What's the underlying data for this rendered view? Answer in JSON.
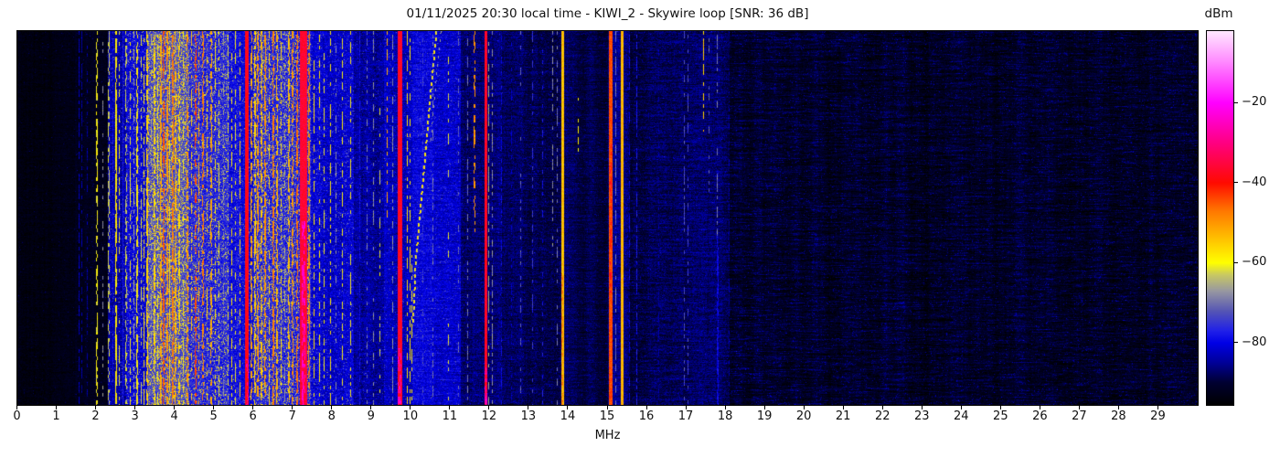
{
  "title": "01/11/2025 20:30 local time - KIWI_2 - Skywire loop [SNR: 36 dB]",
  "x_axis": {
    "label": "MHz",
    "ticks": [
      "0",
      "1",
      "2",
      "3",
      "4",
      "5",
      "6",
      "7",
      "8",
      "9",
      "10",
      "11",
      "12",
      "13",
      "14",
      "15",
      "16",
      "17",
      "18",
      "19",
      "20",
      "21",
      "22",
      "23",
      "24",
      "25",
      "26",
      "27",
      "28",
      "29"
    ]
  },
  "colorbar": {
    "label": "dBm",
    "tick_labels": [
      "−20",
      "−40",
      "−60",
      "−80"
    ],
    "tick_values": [
      -20,
      -40,
      -60,
      -80
    ]
  },
  "chart_data": {
    "type": "heatmap",
    "title": "01/11/2025 20:30 local time - KIWI_2 - Skywire loop [SNR: 36 dB]",
    "xlabel": "MHz",
    "x_range": [
      0,
      30
    ],
    "value_label": "dBm",
    "value_range": [
      -95.5,
      -2
    ],
    "grid": false,
    "legend_position": "right-colorbar",
    "colormap_stops": [
      [
        0.0,
        "#000000"
      ],
      [
        0.059,
        "#000030"
      ],
      [
        0.112,
        "#000096"
      ],
      [
        0.166,
        "#0000e6"
      ],
      [
        0.198,
        "#2020e8"
      ],
      [
        0.251,
        "#5555b4"
      ],
      [
        0.305,
        "#9898a0"
      ],
      [
        0.348,
        "#c8c862"
      ],
      [
        0.38,
        "#ffff00"
      ],
      [
        0.433,
        "#ffcc00"
      ],
      [
        0.519,
        "#ff7700"
      ],
      [
        0.594,
        "#ff0a00"
      ],
      [
        0.7,
        "#ff0080"
      ],
      [
        0.8075,
        "#ff00ff"
      ],
      [
        0.92,
        "#ff8cff"
      ],
      [
        1.0,
        "#ffe8ff"
      ]
    ],
    "noise_profile": [
      [
        0.0,
        1.45,
        -93.5,
        3,
        0.02,
        6,
        2
      ],
      [
        1.45,
        2.28,
        -92.5,
        3,
        0.03,
        7,
        2
      ],
      [
        2.28,
        2.75,
        -84,
        6,
        0.1,
        14,
        3
      ],
      [
        2.75,
        3.28,
        -81,
        7,
        0.14,
        16,
        3
      ],
      [
        3.28,
        4.35,
        -74,
        8,
        0.3,
        20,
        3
      ],
      [
        4.35,
        5.35,
        -77,
        8,
        0.22,
        18,
        3
      ],
      [
        5.35,
        5.98,
        -80,
        7,
        0.12,
        14,
        3
      ],
      [
        5.98,
        7.45,
        -76,
        8,
        0.25,
        18,
        3
      ],
      [
        7.45,
        8.55,
        -81,
        7,
        0.1,
        12,
        3
      ],
      [
        8.55,
        9.3,
        -85,
        6,
        0.06,
        10,
        4
      ],
      [
        9.3,
        10.02,
        -83,
        6,
        0.08,
        10,
        4
      ],
      [
        10.02,
        11.25,
        -81.5,
        6,
        0.08,
        8,
        5
      ],
      [
        11.25,
        12.3,
        -86.5,
        5,
        0.05,
        8,
        4
      ],
      [
        12.3,
        14.0,
        -88.5,
        5,
        0.04,
        7,
        4
      ],
      [
        14.0,
        15.0,
        -89.5,
        4,
        0.04,
        6,
        4
      ],
      [
        15.0,
        15.55,
        -86.5,
        5,
        0.05,
        8,
        4
      ],
      [
        15.55,
        18.1,
        -88.5,
        5,
        0.04,
        7,
        5
      ],
      [
        18.1,
        30.1,
        -91,
        4,
        0.06,
        8,
        7
      ]
    ],
    "bands": [
      [
        1.58,
        1,
        -83,
        0,
        1,
        0.7
      ],
      [
        1.63,
        1,
        -84,
        0,
        1,
        0.5
      ],
      [
        1.78,
        1,
        -85,
        0,
        1,
        0.5
      ],
      [
        2.02,
        2,
        -60,
        0,
        1,
        0.55
      ],
      [
        2.17,
        1,
        -68,
        0,
        1,
        0.3
      ],
      [
        2.32,
        2,
        -63,
        0,
        1,
        0.5
      ],
      [
        2.42,
        1,
        -79,
        0,
        1,
        0.8
      ],
      [
        2.5,
        2,
        -58,
        0,
        1,
        0.75
      ],
      [
        2.6,
        1,
        -62,
        0,
        1,
        0.5
      ],
      [
        2.68,
        1,
        -78,
        0,
        1,
        1
      ],
      [
        2.76,
        2,
        -63,
        0,
        1,
        0.45
      ],
      [
        2.88,
        1,
        -60,
        0,
        1,
        0.55
      ],
      [
        2.97,
        1,
        -65,
        0,
        1,
        0.4
      ],
      [
        3.05,
        2,
        -59,
        0,
        1,
        0.6
      ],
      [
        3.15,
        1,
        -62,
        0,
        1,
        0.5
      ],
      [
        3.22,
        1,
        -58,
        0,
        1,
        0.55
      ],
      [
        3.3,
        2,
        -56,
        0,
        1,
        0.7
      ],
      [
        3.4,
        1,
        -66,
        0,
        1,
        0.5
      ],
      [
        3.48,
        2,
        -57,
        0,
        1,
        0.6
      ],
      [
        3.56,
        1,
        -60,
        0,
        1,
        0.5
      ],
      [
        3.65,
        2,
        -52,
        0,
        1,
        0.75
      ],
      [
        3.72,
        2,
        -45,
        0,
        1,
        0.6
      ],
      [
        3.8,
        2,
        -50,
        0,
        1,
        0.7
      ],
      [
        3.88,
        1,
        -57,
        0,
        1,
        0.6
      ],
      [
        3.95,
        2,
        -48,
        0,
        1,
        0.65
      ],
      [
        4.03,
        2,
        -53,
        0,
        1,
        0.6
      ],
      [
        4.12,
        2,
        -57,
        0,
        1,
        0.5
      ],
      [
        4.22,
        1,
        -60,
        0,
        1,
        0.5
      ],
      [
        4.32,
        2,
        -50,
        0,
        1,
        0.5
      ],
      [
        4.42,
        1,
        -55,
        0,
        1,
        0.5
      ],
      [
        4.52,
        2,
        -44,
        0,
        1,
        0.45
      ],
      [
        4.62,
        1,
        -52,
        0,
        1,
        0.5
      ],
      [
        4.72,
        2,
        -48,
        0,
        1,
        0.55
      ],
      [
        4.82,
        1,
        -55,
        0,
        1,
        0.5
      ],
      [
        4.92,
        2,
        -52,
        0,
        1,
        0.5
      ],
      [
        5.02,
        1,
        -58,
        0,
        1,
        0.5
      ],
      [
        5.12,
        1,
        -60,
        0,
        1,
        0.45
      ],
      [
        5.25,
        1,
        -68,
        0,
        1,
        0.4
      ],
      [
        5.35,
        1,
        -62,
        0,
        1,
        0.4
      ],
      [
        5.45,
        1,
        -58,
        0,
        1,
        0.5
      ],
      [
        5.55,
        1,
        -60,
        0,
        1,
        0.45
      ],
      [
        5.65,
        1,
        -57,
        0,
        1,
        0.5
      ],
      [
        5.75,
        1,
        -80,
        0,
        1,
        1
      ],
      [
        5.84,
        4,
        -38,
        0,
        1,
        1
      ],
      [
        5.84,
        3,
        -27,
        0.88,
        1,
        0.4
      ],
      [
        5.95,
        2,
        -52,
        0,
        1,
        0.6
      ],
      [
        6.05,
        2,
        -55,
        0,
        1,
        0.6
      ],
      [
        6.12,
        2,
        -50,
        0,
        1,
        0.6
      ],
      [
        6.2,
        2,
        -54,
        0,
        1,
        0.6
      ],
      [
        6.3,
        2,
        -50,
        0,
        1,
        0.65
      ],
      [
        6.4,
        1,
        -56,
        0,
        1,
        0.5
      ],
      [
        6.5,
        2,
        -48,
        0,
        1,
        0.7
      ],
      [
        6.6,
        2,
        -53,
        0,
        1,
        0.6
      ],
      [
        6.7,
        1,
        -57,
        0,
        1,
        0.5
      ],
      [
        6.8,
        1,
        -66,
        0,
        1,
        0.4
      ],
      [
        6.9,
        2,
        -54,
        0,
        1,
        0.6
      ],
      [
        7.0,
        2,
        -50,
        0,
        1,
        0.6
      ],
      [
        7.1,
        2,
        -47,
        0,
        1,
        0.6
      ],
      [
        7.27,
        8,
        -36,
        0,
        1,
        1
      ],
      [
        7.28,
        4,
        -24,
        0.5,
        1,
        0.45
      ],
      [
        7.42,
        2,
        -48,
        0,
        1,
        0.6
      ],
      [
        7.55,
        1,
        -57,
        0,
        1,
        0.5
      ],
      [
        7.68,
        1,
        -58,
        0,
        1,
        0.5
      ],
      [
        7.8,
        1,
        -60,
        0,
        1,
        0.45
      ],
      [
        7.95,
        1,
        -58,
        0,
        1,
        0.5
      ],
      [
        8.1,
        1,
        -68,
        0,
        1,
        0.4
      ],
      [
        8.27,
        1,
        -60,
        0,
        1,
        0.45
      ],
      [
        8.47,
        1,
        -59,
        0,
        1,
        0.5
      ],
      [
        8.7,
        1,
        -79,
        0,
        1,
        0.8
      ],
      [
        8.9,
        1,
        -70,
        0,
        1,
        0.35
      ],
      [
        9.05,
        1,
        -68,
        0,
        1,
        0.4
      ],
      [
        9.22,
        1,
        -62,
        0,
        1,
        0.3
      ],
      [
        9.4,
        1,
        -52,
        0,
        0.5,
        0.45
      ],
      [
        9.55,
        1,
        -68,
        0,
        1,
        0.5
      ],
      [
        9.72,
        5,
        -37,
        0,
        1,
        1
      ],
      [
        9.72,
        4,
        -25,
        0.85,
        1,
        0.5
      ],
      [
        9.9,
        1,
        -56,
        0,
        1,
        0.5
      ],
      [
        9.99,
        1,
        -58,
        0,
        1,
        0.45
      ],
      [
        10.03,
        1,
        -59,
        0.6,
        1,
        0.5
      ],
      [
        10.3,
        1,
        -74,
        0,
        1,
        0.3
      ],
      [
        10.55,
        1,
        -70,
        0,
        1,
        0.4
      ],
      [
        10.95,
        1,
        -62,
        0,
        1,
        0.25
      ],
      [
        11.22,
        1,
        -71,
        0,
        1,
        0.4
      ],
      [
        11.45,
        1,
        -70,
        0,
        1,
        0.4
      ],
      [
        11.62,
        2,
        -50,
        0,
        0.55,
        0.5
      ],
      [
        11.9,
        3,
        -37,
        0,
        1,
        1
      ],
      [
        11.9,
        3,
        -25,
        0.9,
        1,
        0.5
      ],
      [
        11.98,
        1,
        -66,
        0,
        1,
        0.6
      ],
      [
        12.08,
        1,
        -68,
        0,
        1,
        0.5
      ],
      [
        12.3,
        1,
        -80,
        0,
        1,
        0.4
      ],
      [
        12.55,
        1,
        -82,
        0,
        1,
        0.4
      ],
      [
        12.8,
        1,
        -72,
        0,
        1,
        0.3
      ],
      [
        13.1,
        1,
        -75,
        0,
        1,
        0.3
      ],
      [
        13.35,
        1,
        -78,
        0,
        1,
        0.3
      ],
      [
        13.6,
        1,
        -68,
        0,
        0.6,
        0.45
      ],
      [
        13.72,
        1,
        -70,
        0,
        1,
        0.4
      ],
      [
        13.85,
        3,
        -54,
        0,
        1,
        1
      ],
      [
        13.85,
        2,
        -48,
        0.65,
        1,
        0.6
      ],
      [
        14.25,
        1,
        -58,
        0.18,
        0.33,
        0.6
      ],
      [
        15.08,
        4,
        -44,
        0,
        1,
        1
      ],
      [
        15.08,
        2,
        -38,
        0.3,
        0.7,
        0.4
      ],
      [
        15.2,
        1,
        -70,
        0,
        1,
        0.6
      ],
      [
        15.37,
        3,
        -53,
        0,
        1,
        1
      ],
      [
        15.55,
        1,
        -80,
        0,
        1,
        0.5
      ],
      [
        15.74,
        1,
        -78,
        0,
        1,
        0.7
      ],
      [
        16.3,
        1,
        -84,
        0,
        1,
        0.4
      ],
      [
        16.95,
        1,
        -73,
        0,
        1,
        0.5
      ],
      [
        17.05,
        1,
        -74,
        0,
        1,
        0.4
      ],
      [
        17.45,
        1,
        -55,
        0,
        0.27,
        0.6
      ],
      [
        17.58,
        1,
        -72,
        0,
        0.5,
        0.3
      ],
      [
        17.8,
        1,
        -70,
        0,
        0.55,
        0.5
      ],
      [
        17.8,
        2,
        -80,
        0.55,
        1,
        0.7
      ],
      [
        18.1,
        1,
        -85,
        0,
        1,
        0.4
      ]
    ],
    "chirp_trace": {
      "description": "slanted dashed ionosonde chirp near 10-10.7 MHz",
      "points": [
        [
          10.63,
          0
        ],
        [
          10.47,
          0.18
        ],
        [
          10.33,
          0.35
        ],
        [
          10.2,
          0.5
        ],
        [
          10.1,
          0.62
        ],
        [
          10.04,
          0.78
        ]
      ],
      "level_dbm": -57
    }
  }
}
